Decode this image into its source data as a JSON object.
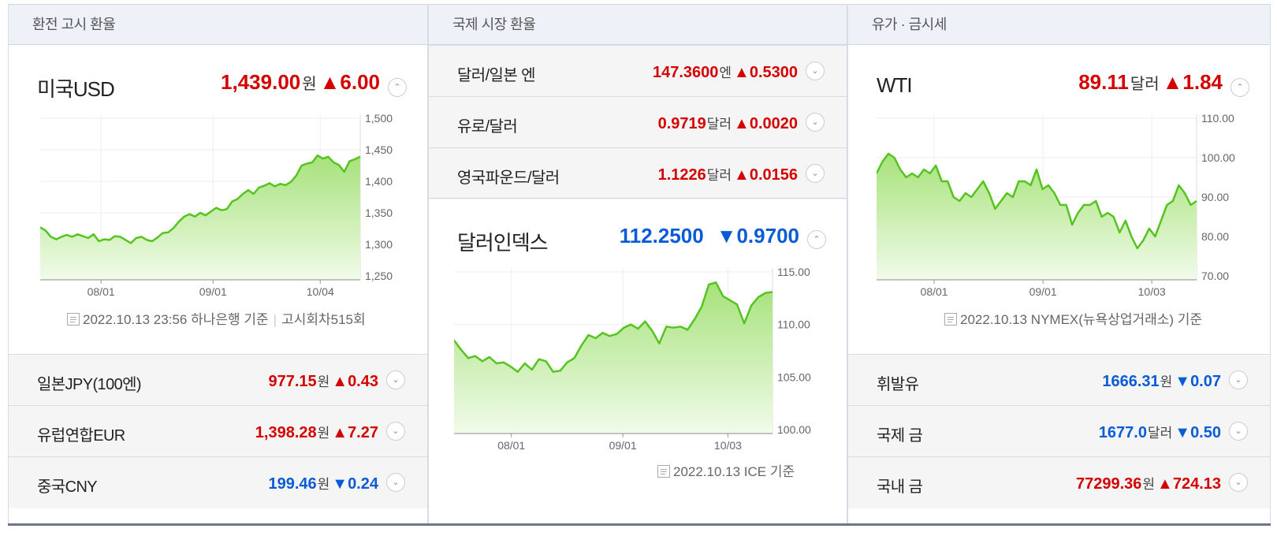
{
  "panels": {
    "exchange": {
      "title": "환전 고시 환율",
      "main": {
        "name": "미국USD",
        "value": "1,439.00",
        "unit": "원",
        "arrow": "▲",
        "change": "6.00",
        "toggle": "⌃"
      },
      "note": {
        "text": "2022.10.13 23:56 하나은행 기준",
        "extra": "고시회차515회"
      },
      "rows": [
        {
          "name": "일본JPY(100엔)",
          "value": "977.15",
          "unit": "원",
          "arrow": "▲",
          "change": "0.43",
          "dir": "up"
        },
        {
          "name": "유럽연합EUR",
          "value": "1,398.28",
          "unit": "원",
          "arrow": "▲",
          "change": "7.27",
          "dir": "up"
        },
        {
          "name": "중국CNY",
          "value": "199.46",
          "unit": "원",
          "arrow": "▼",
          "change": "0.24",
          "dir": "down"
        }
      ]
    },
    "intl": {
      "title": "국제 시장 환율",
      "rows": [
        {
          "name": "달러/일본 엔",
          "value": "147.3600",
          "unit": "엔",
          "arrow": "▲",
          "change": "0.5300",
          "dir": "up"
        },
        {
          "name": "유로/달러",
          "value": "0.9719",
          "unit": "달러",
          "arrow": "▲",
          "change": "0.0020",
          "dir": "up"
        },
        {
          "name": "영국파운드/달러",
          "value": "1.1226",
          "unit": "달러",
          "arrow": "▲",
          "change": "0.0156",
          "dir": "up"
        }
      ],
      "main": {
        "name": "달러인덱스",
        "value": "112.2500",
        "unit": "",
        "arrow": "▼",
        "change": "0.9700",
        "toggle": "⌃"
      },
      "note": {
        "text": "2022.10.13 ICE 기준"
      }
    },
    "oil": {
      "title": "유가 · 금시세",
      "main": {
        "name": "WTI",
        "value": "89.11",
        "unit": "달러",
        "arrow": "▲",
        "change": "1.84",
        "toggle": "⌃"
      },
      "note": {
        "text": "2022.10.13 NYMEX(뉴욕상업거래소) 기준"
      },
      "rows": [
        {
          "name": "휘발유",
          "value": "1666.31",
          "unit": "원",
          "arrow": "▼",
          "change": "0.07",
          "dir": "down"
        },
        {
          "name": "국제 금",
          "value": "1677.0",
          "unit": "달러",
          "arrow": "▼",
          "change": "0.50",
          "dir": "down"
        },
        {
          "name": "국내 금",
          "value": "77299.36",
          "unit": "원",
          "arrow": "▲",
          "change": "724.13",
          "dir": "up"
        }
      ]
    }
  },
  "colors": {
    "up": "#d50000",
    "down": "#0a5bd6",
    "line": "#55c41e",
    "fillTop": "#a6e27a",
    "fillBottom": "#f1fbea"
  },
  "chart_data": [
    {
      "type": "area",
      "name": "usd",
      "x_ticks": [
        "08/01",
        "09/01",
        "10/04"
      ],
      "y_ticks": [
        "1,500",
        "1,450",
        "1,400",
        "1,350",
        "1,300",
        "1,250"
      ],
      "ylim": [
        1250,
        1500
      ],
      "values": [
        1327,
        1322,
        1312,
        1308,
        1312,
        1315,
        1312,
        1316,
        1313,
        1310,
        1316,
        1305,
        1308,
        1307,
        1313,
        1312,
        1307,
        1302,
        1310,
        1312,
        1307,
        1305,
        1311,
        1318,
        1319,
        1326,
        1336,
        1344,
        1348,
        1344,
        1350,
        1346,
        1352,
        1358,
        1354,
        1356,
        1368,
        1372,
        1380,
        1386,
        1380,
        1390,
        1393,
        1397,
        1392,
        1396,
        1394,
        1399,
        1409,
        1425,
        1428,
        1430,
        1441,
        1436,
        1439,
        1430,
        1426,
        1415,
        1432,
        1435,
        1439
      ]
    },
    {
      "type": "area",
      "name": "dxy",
      "x_ticks": [
        "08/01",
        "09/01",
        "10/03"
      ],
      "y_ticks": [
        "115.00",
        "110.00",
        "105.00",
        "100.00"
      ],
      "ylim": [
        100,
        115
      ],
      "values": [
        108.5,
        107.6,
        106.8,
        107.0,
        106.5,
        106.9,
        106.3,
        106.4,
        106.0,
        105.5,
        106.3,
        105.7,
        106.7,
        106.5,
        105.5,
        105.6,
        106.4,
        106.8,
        108.0,
        109.0,
        108.7,
        109.2,
        108.9,
        109.1,
        109.7,
        110.0,
        109.6,
        110.3,
        109.4,
        108.2,
        109.8,
        109.7,
        109.8,
        109.5,
        110.5,
        111.7,
        113.8,
        114.0,
        112.7,
        112.3,
        111.9,
        110.1,
        111.8,
        112.6,
        113.0,
        113.1
      ]
    },
    {
      "type": "area",
      "name": "wti",
      "x_ticks": [
        "08/01",
        "09/01",
        "10/03"
      ],
      "y_ticks": [
        "110.00",
        "100.00",
        "90.00",
        "80.00",
        "70.00"
      ],
      "ylim": [
        70,
        110
      ],
      "values": [
        96,
        99,
        101,
        100,
        97,
        95,
        96,
        95,
        97,
        96,
        98,
        94,
        94,
        90,
        89,
        91,
        90,
        92,
        94,
        91,
        87,
        89,
        91,
        90,
        94,
        94,
        93,
        97,
        92,
        93,
        91,
        88,
        88,
        83,
        86,
        88,
        88,
        89,
        85,
        86,
        85,
        81,
        84,
        80,
        77,
        79,
        82,
        80,
        84,
        88,
        89,
        93,
        91,
        88,
        89
      ]
    }
  ]
}
